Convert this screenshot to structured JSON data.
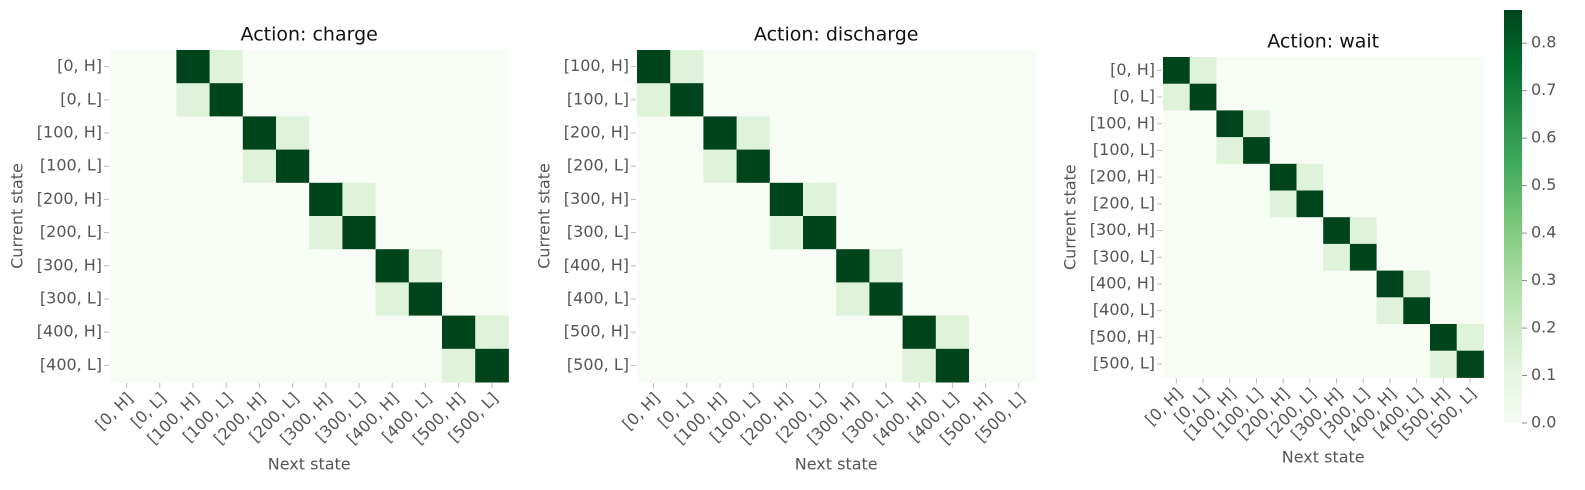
{
  "chart_data": [
    {
      "type": "heatmap",
      "title": "Action: charge",
      "xlabel": "Next state",
      "ylabel": "Current state",
      "x": [
        "[0, H]",
        "[0, L]",
        "[100, H]",
        "[100, L]",
        "[200, H]",
        "[200, L]",
        "[300, H]",
        "[300, L]",
        "[400, H]",
        "[400, L]",
        "[500, H]",
        "[500, L]"
      ],
      "y": [
        "[0, H]",
        "[0, L]",
        "[100, H]",
        "[100, L]",
        "[200, H]",
        "[200, L]",
        "[300, H]",
        "[300, L]",
        "[400, H]",
        "[400, L]"
      ],
      "z": [
        [
          0,
          0,
          0.87,
          0.13,
          0,
          0,
          0,
          0,
          0,
          0,
          0,
          0
        ],
        [
          0,
          0,
          0.13,
          0.87,
          0,
          0,
          0,
          0,
          0,
          0,
          0,
          0
        ],
        [
          0,
          0,
          0,
          0,
          0.87,
          0.13,
          0,
          0,
          0,
          0,
          0,
          0
        ],
        [
          0,
          0,
          0,
          0,
          0.13,
          0.87,
          0,
          0,
          0,
          0,
          0,
          0
        ],
        [
          0,
          0,
          0,
          0,
          0,
          0,
          0.87,
          0.13,
          0,
          0,
          0,
          0
        ],
        [
          0,
          0,
          0,
          0,
          0,
          0,
          0.13,
          0.87,
          0,
          0,
          0,
          0
        ],
        [
          0,
          0,
          0,
          0,
          0,
          0,
          0,
          0,
          0.87,
          0.13,
          0,
          0
        ],
        [
          0,
          0,
          0,
          0,
          0,
          0,
          0,
          0,
          0.13,
          0.87,
          0,
          0
        ],
        [
          0,
          0,
          0,
          0,
          0,
          0,
          0,
          0,
          0,
          0,
          0.87,
          0.13
        ],
        [
          0,
          0,
          0,
          0,
          0,
          0,
          0,
          0,
          0,
          0,
          0.13,
          0.87
        ]
      ]
    },
    {
      "type": "heatmap",
      "title": "Action: discharge",
      "xlabel": "Next state",
      "ylabel": "Current state",
      "x": [
        "[0, H]",
        "[0, L]",
        "[100, H]",
        "[100, L]",
        "[200, H]",
        "[200, L]",
        "[300, H]",
        "[300, L]",
        "[400, H]",
        "[400, L]",
        "[500, H]",
        "[500, L]"
      ],
      "y": [
        "[100, H]",
        "[100, L]",
        "[200, H]",
        "[200, L]",
        "[300, H]",
        "[300, L]",
        "[400, H]",
        "[400, L]",
        "[500, H]",
        "[500, L]"
      ],
      "z": [
        [
          0.87,
          0.13,
          0,
          0,
          0,
          0,
          0,
          0,
          0,
          0,
          0,
          0
        ],
        [
          0.13,
          0.87,
          0,
          0,
          0,
          0,
          0,
          0,
          0,
          0,
          0,
          0
        ],
        [
          0,
          0,
          0.87,
          0.13,
          0,
          0,
          0,
          0,
          0,
          0,
          0,
          0
        ],
        [
          0,
          0,
          0.13,
          0.87,
          0,
          0,
          0,
          0,
          0,
          0,
          0,
          0
        ],
        [
          0,
          0,
          0,
          0,
          0.87,
          0.13,
          0,
          0,
          0,
          0,
          0,
          0
        ],
        [
          0,
          0,
          0,
          0,
          0.13,
          0.87,
          0,
          0,
          0,
          0,
          0,
          0
        ],
        [
          0,
          0,
          0,
          0,
          0,
          0,
          0.87,
          0.13,
          0,
          0,
          0,
          0
        ],
        [
          0,
          0,
          0,
          0,
          0,
          0,
          0.13,
          0.87,
          0,
          0,
          0,
          0
        ],
        [
          0,
          0,
          0,
          0,
          0,
          0,
          0,
          0,
          0.87,
          0.13,
          0,
          0
        ],
        [
          0,
          0,
          0,
          0,
          0,
          0,
          0,
          0,
          0.13,
          0.87,
          0,
          0
        ]
      ]
    },
    {
      "type": "heatmap",
      "title": "Action: wait",
      "xlabel": "Next state",
      "ylabel": "Current state",
      "x": [
        "[0, H]",
        "[0, L]",
        "[100, H]",
        "[100, L]",
        "[200, H]",
        "[200, L]",
        "[300, H]",
        "[300, L]",
        "[400, H]",
        "[400, L]",
        "[500, H]",
        "[500, L]"
      ],
      "y": [
        "[0, H]",
        "[0, L]",
        "[100, H]",
        "[100, L]",
        "[200, H]",
        "[200, L]",
        "[300, H]",
        "[300, L]",
        "[400, H]",
        "[400, L]",
        "[500, H]",
        "[500, L]"
      ],
      "z": [
        [
          0.87,
          0.13,
          0,
          0,
          0,
          0,
          0,
          0,
          0,
          0,
          0,
          0
        ],
        [
          0.13,
          0.87,
          0,
          0,
          0,
          0,
          0,
          0,
          0,
          0,
          0,
          0
        ],
        [
          0,
          0,
          0.87,
          0.13,
          0,
          0,
          0,
          0,
          0,
          0,
          0,
          0
        ],
        [
          0,
          0,
          0.13,
          0.87,
          0,
          0,
          0,
          0,
          0,
          0,
          0,
          0
        ],
        [
          0,
          0,
          0,
          0,
          0.87,
          0.13,
          0,
          0,
          0,
          0,
          0,
          0
        ],
        [
          0,
          0,
          0,
          0,
          0.13,
          0.87,
          0,
          0,
          0,
          0,
          0,
          0
        ],
        [
          0,
          0,
          0,
          0,
          0,
          0,
          0.87,
          0.13,
          0,
          0,
          0,
          0
        ],
        [
          0,
          0,
          0,
          0,
          0,
          0,
          0.13,
          0.87,
          0,
          0,
          0,
          0
        ],
        [
          0,
          0,
          0,
          0,
          0,
          0,
          0,
          0,
          0.87,
          0.13,
          0,
          0
        ],
        [
          0,
          0,
          0,
          0,
          0,
          0,
          0,
          0,
          0.13,
          0.87,
          0,
          0
        ],
        [
          0,
          0,
          0,
          0,
          0,
          0,
          0,
          0,
          0,
          0,
          0.87,
          0.13
        ],
        [
          0,
          0,
          0,
          0,
          0,
          0,
          0,
          0,
          0,
          0,
          0.13,
          0.87
        ]
      ]
    }
  ],
  "colorbar": {
    "zlim": [
      0,
      0.87
    ],
    "zticks": [
      {
        "value": 0,
        "label": "0.0"
      },
      0.1,
      0.2,
      0.3,
      0.4,
      0.5,
      0.6,
      0.7,
      0.8
    ],
    "colormap": [
      "#f7fcf5",
      "#e5f5e0",
      "#c7e9c0",
      "#a1d99b",
      "#74c476",
      "#41ab5d",
      "#238b45",
      "#006d2c",
      "#00441b"
    ]
  }
}
